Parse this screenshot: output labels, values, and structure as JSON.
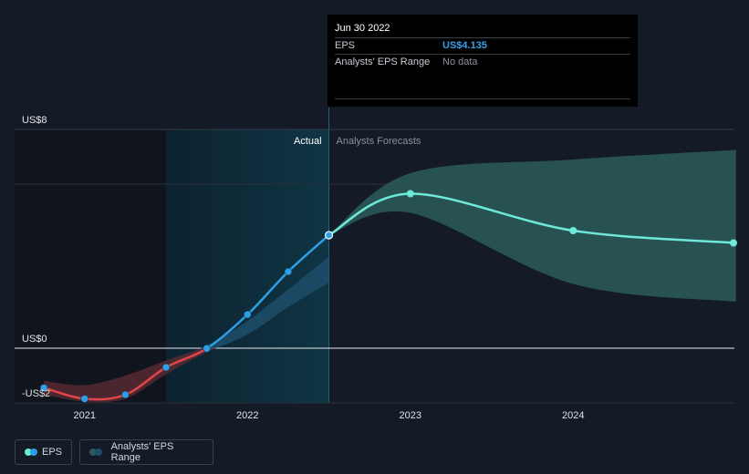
{
  "tooltip": {
    "date": "Jun 30 2022",
    "rows": [
      {
        "label": "EPS",
        "value": "US$4.135"
      },
      {
        "label": "Analysts' EPS Range",
        "value": "No data"
      }
    ]
  },
  "section_labels": {
    "actual": "Actual",
    "forecast": "Analysts Forecasts"
  },
  "legend": {
    "eps_label": "EPS",
    "range_label": "Analysts' EPS Range"
  },
  "colors": {
    "background": "#151b26",
    "eps_positive": "#2e9fe6",
    "eps_negative": "#e0454a",
    "forecast_line": "#6ee8d8",
    "forecast_band": "#2c5a5a",
    "actual_highlight": "#0f3544"
  },
  "chart_data": {
    "type": "line",
    "title": "",
    "xlabel": "",
    "ylabel": "",
    "x_ticks": [
      "2021",
      "2022",
      "2023",
      "2024"
    ],
    "x_tick_values": [
      2021,
      2022,
      2023,
      2024
    ],
    "y_ticks": [
      {
        "value": 8,
        "label": "US$8"
      },
      {
        "value": 0,
        "label": "US$0"
      },
      {
        "value": -2,
        "label": "-US$2"
      }
    ],
    "x_range": [
      2020.57,
      2024.99
    ],
    "y_range": [
      -2.0,
      8.0
    ],
    "actual_end": 2022.5,
    "highlight_start": 2021.5,
    "series": [
      {
        "name": "EPS",
        "kind": "actual",
        "points": [
          {
            "x": 2020.75,
            "y": -1.45
          },
          {
            "x": 2021.0,
            "y": -1.85
          },
          {
            "x": 2021.25,
            "y": -1.7
          },
          {
            "x": 2021.5,
            "y": -0.7
          },
          {
            "x": 2021.75,
            "y": -0.01
          },
          {
            "x": 2022.0,
            "y": 1.23
          },
          {
            "x": 2022.25,
            "y": 2.8
          },
          {
            "x": 2022.5,
            "y": 4.135
          }
        ]
      },
      {
        "name": "EPS",
        "kind": "forecast",
        "points": [
          {
            "x": 2022.5,
            "y": 4.135
          },
          {
            "x": 2023.0,
            "y": 5.65
          },
          {
            "x": 2024.0,
            "y": 4.3
          },
          {
            "x": 2025.0,
            "y": 3.85
          }
        ]
      }
    ],
    "forecast_range": [
      {
        "x": 2022.5,
        "low": 4.135,
        "high": 4.135
      },
      {
        "x": 2023.0,
        "low": 4.95,
        "high": 6.4
      },
      {
        "x": 2024.0,
        "low": 2.35,
        "high": 6.9
      },
      {
        "x": 2025.0,
        "low": 1.7,
        "high": 7.25
      }
    ],
    "past_range": [
      {
        "x": 2020.75,
        "low": -1.7,
        "high": -1.2
      },
      {
        "x": 2021.0,
        "low": -1.95,
        "high": -1.35
      },
      {
        "x": 2021.25,
        "low": -1.85,
        "high": -1.0
      },
      {
        "x": 2021.5,
        "low": -0.95,
        "high": -0.45
      },
      {
        "x": 2021.75,
        "low": -0.15,
        "high": 0.1
      },
      {
        "x": 2022.0,
        "low": 0.5,
        "high": 1.0
      },
      {
        "x": 2022.25,
        "low": 1.5,
        "high": 2.15
      },
      {
        "x": 2022.5,
        "low": 2.4,
        "high": 3.35
      }
    ]
  }
}
